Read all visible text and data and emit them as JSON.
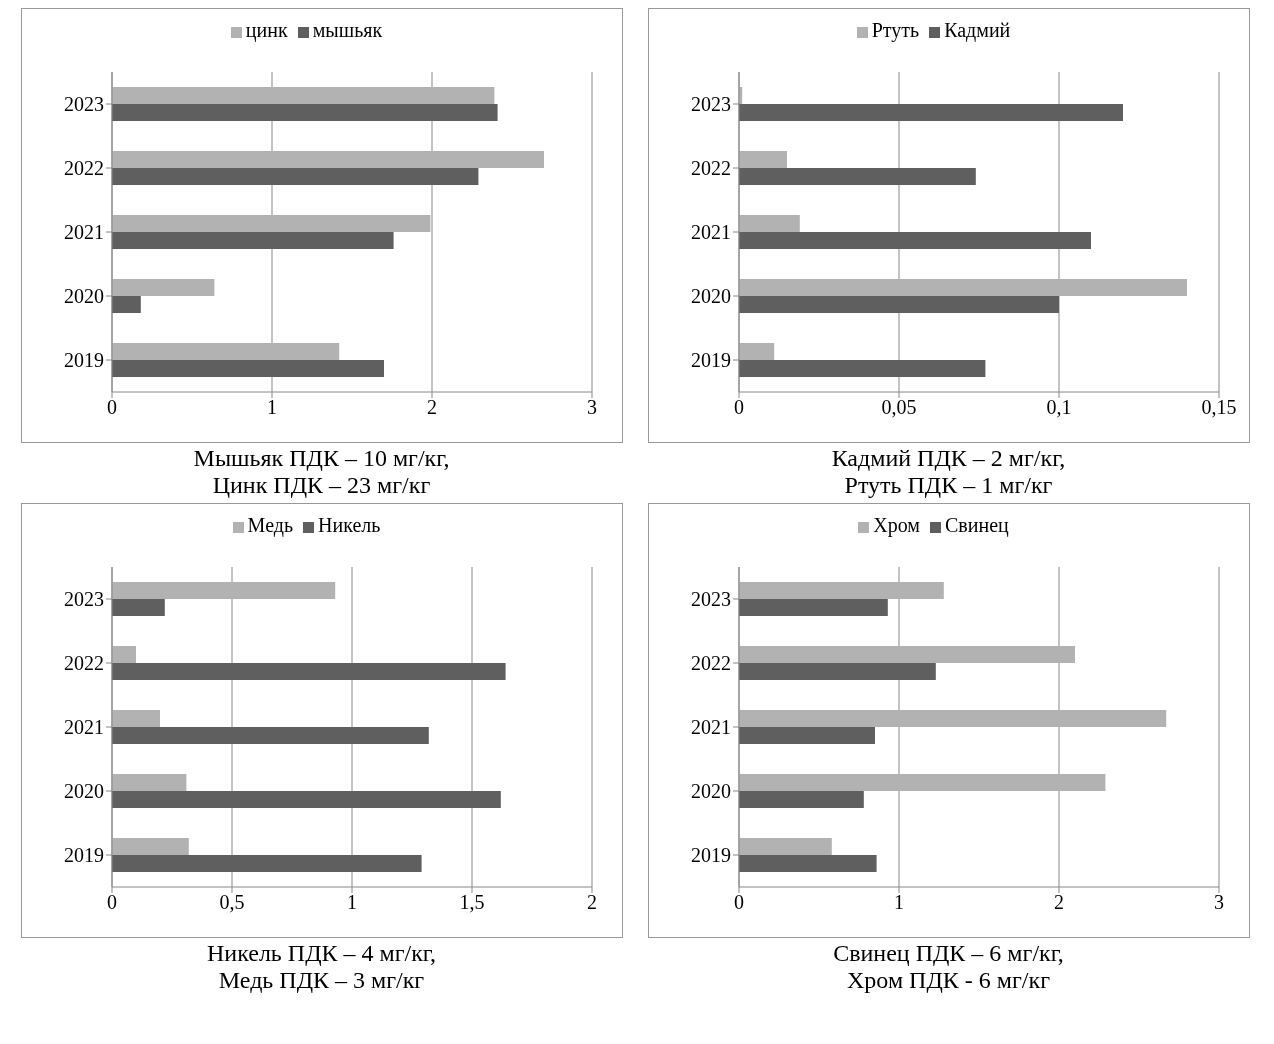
{
  "chart_data": [
    {
      "type": "bar",
      "orientation": "horizontal",
      "categories": [
        "2023",
        "2022",
        "2021",
        "2020",
        "2019"
      ],
      "series": [
        {
          "name": "цинк",
          "color": "#b2b2b2",
          "values": [
            2.39,
            2.7,
            1.99,
            0.64,
            1.42
          ]
        },
        {
          "name": "мышьяк",
          "color": "#5f5f5f",
          "values": [
            2.41,
            2.29,
            1.76,
            0.18,
            1.7
          ]
        }
      ],
      "xlim": [
        0,
        3
      ],
      "xticks": [
        0,
        1,
        2,
        3
      ],
      "grid": "x",
      "legend": "top",
      "annotations": [
        "Мышьяк ПДК – 10 мг/кг,",
        "Цинк ПДК – 23 мг/кг"
      ]
    },
    {
      "type": "bar",
      "orientation": "horizontal",
      "categories": [
        "2023",
        "2022",
        "2021",
        "2020",
        "2019"
      ],
      "series": [
        {
          "name": "Ртуть",
          "color": "#b2b2b2",
          "values": [
            0.001,
            0.015,
            0.019,
            0.14,
            0.011
          ]
        },
        {
          "name": "Кадмий",
          "color": "#5f5f5f",
          "values": [
            0.12,
            0.074,
            0.11,
            0.1,
            0.077
          ]
        }
      ],
      "xlim": [
        0,
        0.15
      ],
      "xticks": [
        0,
        {
          "value": 0.05,
          "label": "0,05"
        },
        {
          "value": 0.1,
          "label": "0,1"
        },
        {
          "value": 0.15,
          "label": "0,15"
        }
      ],
      "grid": "x",
      "legend": "top",
      "annotations": [
        "Кадмий ПДК – 2 мг/кг,",
        "Ртуть ПДК – 1 мг/кг"
      ]
    },
    {
      "type": "bar",
      "orientation": "horizontal",
      "categories": [
        "2023",
        "2022",
        "2021",
        "2020",
        "2019"
      ],
      "series": [
        {
          "name": "Медь",
          "color": "#b2b2b2",
          "values": [
            0.93,
            0.1,
            0.2,
            0.31,
            0.32
          ]
        },
        {
          "name": "Никель",
          "color": "#5f5f5f",
          "values": [
            0.22,
            1.64,
            1.32,
            1.62,
            1.29
          ]
        }
      ],
      "xlim": [
        0,
        2
      ],
      "xticks": [
        0,
        {
          "value": 0.5,
          "label": "0,5"
        },
        1,
        {
          "value": 1.5,
          "label": "1,5"
        },
        2
      ],
      "grid": "x",
      "legend": "top",
      "annotations": [
        "Никель ПДК – 4 мг/кг,",
        "Медь ПДК – 3 мг/кг"
      ]
    },
    {
      "type": "bar",
      "orientation": "horizontal",
      "categories": [
        "2023",
        "2022",
        "2021",
        "2020",
        "2019"
      ],
      "series": [
        {
          "name": "Хром",
          "color": "#b2b2b2",
          "values": [
            1.28,
            2.1,
            2.67,
            2.29,
            0.58
          ]
        },
        {
          "name": "Свинец",
          "color": "#5f5f5f",
          "values": [
            0.93,
            1.23,
            0.85,
            0.78,
            0.86
          ]
        }
      ],
      "xlim": [
        0,
        3
      ],
      "xticks": [
        0,
        1,
        2,
        3
      ],
      "grid": "x",
      "legend": "top",
      "annotations": [
        "Свинец ПДК – 6 мг/кг,",
        "Хром ПДК - 6 мг/кг"
      ]
    }
  ]
}
